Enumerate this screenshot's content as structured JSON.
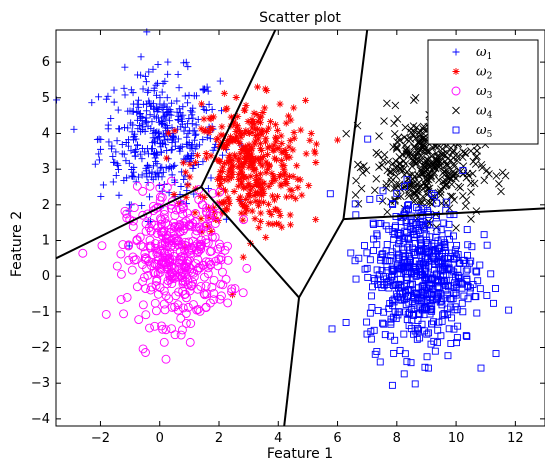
{
  "chart_data": {
    "type": "scatter",
    "title": "Scatter plot",
    "xlabel": "Feature 1",
    "ylabel": "Feature 2",
    "xlim": [
      -3.5,
      13
    ],
    "ylim": [
      -4.2,
      6.9
    ],
    "xticks": [
      -2,
      0,
      2,
      4,
      6,
      8,
      10,
      12
    ],
    "yticks": [
      -4,
      -3,
      -2,
      -1,
      0,
      1,
      2,
      3,
      4,
      5,
      6
    ],
    "grid": false,
    "legend_position": "top-right",
    "series": [
      {
        "name": "ω1",
        "legend_base": "ω",
        "legend_sub": "1",
        "marker": "plus",
        "color": "#0000ff",
        "center": [
          0.0,
          3.9
        ],
        "spread": [
          1.0,
          0.9
        ],
        "count": 400
      },
      {
        "name": "ω2",
        "legend_base": "ω",
        "legend_sub": "2",
        "marker": "asterisk",
        "color": "#ff0000",
        "center": [
          3.0,
          3.1
        ],
        "spread": [
          0.95,
          0.9
        ],
        "count": 400
      },
      {
        "name": "ω3",
        "legend_base": "ω",
        "legend_sub": "3",
        "marker": "circle",
        "color": "#ff00ff",
        "center": [
          0.6,
          0.5
        ],
        "spread": [
          0.85,
          0.9
        ],
        "count": 400
      },
      {
        "name": "ω4",
        "legend_base": "ω",
        "legend_sub": "4",
        "marker": "x",
        "color": "#000000",
        "center": [
          9.0,
          3.1
        ],
        "spread": [
          0.9,
          0.7
        ],
        "count": 400
      },
      {
        "name": "ω5",
        "legend_base": "ω",
        "legend_sub": "5",
        "marker": "square",
        "color": "#0000ff",
        "center": [
          8.8,
          0.1
        ],
        "spread": [
          0.9,
          1.05
        ],
        "count": 600
      }
    ],
    "decision_boundaries": [
      [
        [
          -3.5,
          0.5
        ],
        [
          1.4,
          2.5
        ]
      ],
      [
        [
          1.4,
          2.5
        ],
        [
          3.9,
          6.9
        ]
      ],
      [
        [
          1.4,
          2.5
        ],
        [
          4.7,
          -0.6
        ]
      ],
      [
        [
          4.7,
          -0.6
        ],
        [
          6.2,
          1.6
        ]
      ],
      [
        [
          6.2,
          1.6
        ],
        [
          7.0,
          6.9
        ]
      ],
      [
        [
          6.2,
          1.6
        ],
        [
          13,
          1.9
        ]
      ],
      [
        [
          4.7,
          -0.6
        ],
        [
          4.2,
          -4.2
        ]
      ]
    ]
  }
}
